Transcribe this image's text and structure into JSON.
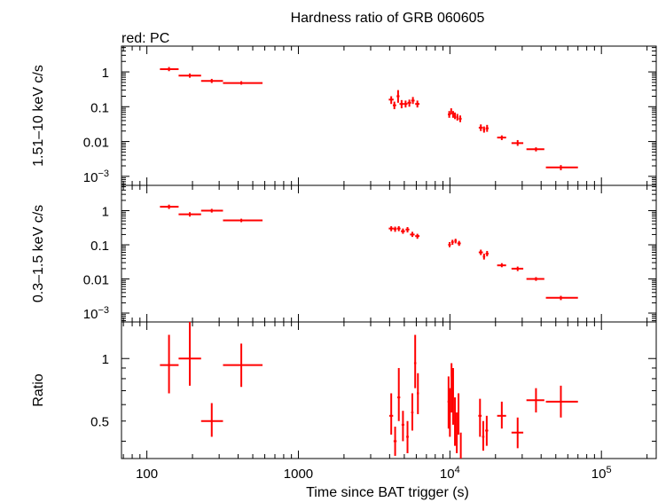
{
  "chart_data": {
    "title": "Hardness ratio of GRB 060605",
    "subtitle": "red: PC",
    "xlabel": "Time since BAT trigger (s)",
    "x_scale": "log",
    "xlim": [
      68,
      230000
    ],
    "x_ticks": [
      {
        "value": 100,
        "label": "100"
      },
      {
        "value": 1000,
        "label": "1000"
      },
      {
        "value": 10000,
        "label": "10",
        "exp": "4"
      },
      {
        "value": 100000,
        "label": "10",
        "exp": "5"
      }
    ],
    "series_color": "#ff0000",
    "panels": [
      {
        "type": "scatter",
        "ylabel": "1.51–10 keV c/s",
        "y_scale": "log",
        "ylim": [
          0.00055,
          5.5
        ],
        "y_ticks": [
          {
            "value": 1,
            "label": "1"
          },
          {
            "value": 0.1,
            "label": "0.1"
          },
          {
            "value": 0.01,
            "label": "0.01"
          },
          {
            "value": 0.001,
            "label": "10",
            "exp": "−3"
          }
        ],
        "points": [
          {
            "x": 140,
            "xlo": 122,
            "xhi": 162,
            "y": 1.2,
            "ylo": 1.05,
            "yhi": 1.38
          },
          {
            "x": 192,
            "xlo": 162,
            "xhi": 228,
            "y": 0.78,
            "ylo": 0.68,
            "yhi": 0.9
          },
          {
            "x": 268,
            "xlo": 228,
            "xhi": 318,
            "y": 0.55,
            "ylo": 0.48,
            "yhi": 0.63
          },
          {
            "x": 420,
            "xlo": 318,
            "xhi": 580,
            "y": 0.48,
            "ylo": 0.43,
            "yhi": 0.54
          },
          {
            "x": 4100,
            "xlo": 3950,
            "xhi": 4250,
            "y": 0.16,
            "ylo": 0.12,
            "yhi": 0.2
          },
          {
            "x": 4300,
            "xlo": 4200,
            "xhi": 4420,
            "y": 0.11,
            "ylo": 0.085,
            "yhi": 0.14
          },
          {
            "x": 4550,
            "xlo": 4450,
            "xhi": 4650,
            "y": 0.2,
            "ylo": 0.13,
            "yhi": 0.3
          },
          {
            "x": 4800,
            "xlo": 4650,
            "xhi": 4950,
            "y": 0.12,
            "ylo": 0.09,
            "yhi": 0.155
          },
          {
            "x": 5100,
            "xlo": 4950,
            "xhi": 5250,
            "y": 0.12,
            "ylo": 0.095,
            "yhi": 0.15
          },
          {
            "x": 5400,
            "xlo": 5250,
            "xhi": 5550,
            "y": 0.13,
            "ylo": 0.1,
            "yhi": 0.16
          },
          {
            "x": 5700,
            "xlo": 5550,
            "xhi": 5850,
            "y": 0.15,
            "ylo": 0.12,
            "yhi": 0.19
          },
          {
            "x": 6100,
            "xlo": 5900,
            "xhi": 6300,
            "y": 0.12,
            "ylo": 0.095,
            "yhi": 0.15
          },
          {
            "x": 9900,
            "xlo": 9700,
            "xhi": 10100,
            "y": 0.06,
            "ylo": 0.048,
            "yhi": 0.075
          },
          {
            "x": 10200,
            "xlo": 10100,
            "xhi": 10300,
            "y": 0.075,
            "ylo": 0.06,
            "yhi": 0.09
          },
          {
            "x": 10500,
            "xlo": 10400,
            "xhi": 10600,
            "y": 0.06,
            "ylo": 0.048,
            "yhi": 0.075
          },
          {
            "x": 10800,
            "xlo": 10700,
            "xhi": 10900,
            "y": 0.055,
            "ylo": 0.044,
            "yhi": 0.068
          },
          {
            "x": 11200,
            "xlo": 11000,
            "xhi": 11400,
            "y": 0.05,
            "ylo": 0.04,
            "yhi": 0.062
          },
          {
            "x": 11700,
            "xlo": 11450,
            "xhi": 11950,
            "y": 0.045,
            "ylo": 0.036,
            "yhi": 0.056
          },
          {
            "x": 16000,
            "xlo": 15500,
            "xhi": 16500,
            "y": 0.025,
            "ylo": 0.02,
            "yhi": 0.031
          },
          {
            "x": 16800,
            "xlo": 16500,
            "xhi": 17100,
            "y": 0.022,
            "ylo": 0.018,
            "yhi": 0.027
          },
          {
            "x": 17600,
            "xlo": 17200,
            "xhi": 18000,
            "y": 0.024,
            "ylo": 0.019,
            "yhi": 0.03
          },
          {
            "x": 22000,
            "xlo": 20500,
            "xhi": 23500,
            "y": 0.013,
            "ylo": 0.011,
            "yhi": 0.015
          },
          {
            "x": 28000,
            "xlo": 25500,
            "xhi": 30500,
            "y": 0.009,
            "ylo": 0.0075,
            "yhi": 0.011
          },
          {
            "x": 37000,
            "xlo": 32000,
            "xhi": 42000,
            "y": 0.006,
            "ylo": 0.0052,
            "yhi": 0.0068
          },
          {
            "x": 54000,
            "xlo": 43000,
            "xhi": 70000,
            "y": 0.0018,
            "ylo": 0.0015,
            "yhi": 0.0021
          }
        ]
      },
      {
        "type": "scatter",
        "ylabel": "0.3–1.5 keV c/s",
        "y_scale": "log",
        "ylim": [
          0.00055,
          5.5
        ],
        "y_ticks": [
          {
            "value": 1,
            "label": "1"
          },
          {
            "value": 0.1,
            "label": "0.1"
          },
          {
            "value": 0.01,
            "label": "0.01"
          },
          {
            "value": 0.001,
            "label": "10",
            "exp": "−3"
          }
        ],
        "points": [
          {
            "x": 140,
            "xlo": 122,
            "xhi": 162,
            "y": 1.3,
            "ylo": 1.12,
            "yhi": 1.5
          },
          {
            "x": 192,
            "xlo": 162,
            "xhi": 228,
            "y": 0.78,
            "ylo": 0.67,
            "yhi": 0.9
          },
          {
            "x": 268,
            "xlo": 228,
            "xhi": 318,
            "y": 1.0,
            "ylo": 0.88,
            "yhi": 1.13
          },
          {
            "x": 420,
            "xlo": 318,
            "xhi": 580,
            "y": 0.52,
            "ylo": 0.46,
            "yhi": 0.58
          },
          {
            "x": 4100,
            "xlo": 3950,
            "xhi": 4250,
            "y": 0.3,
            "ylo": 0.25,
            "yhi": 0.35
          },
          {
            "x": 4350,
            "xlo": 4250,
            "xhi": 4450,
            "y": 0.29,
            "ylo": 0.24,
            "yhi": 0.34
          },
          {
            "x": 4600,
            "xlo": 4480,
            "xhi": 4720,
            "y": 0.3,
            "ylo": 0.25,
            "yhi": 0.35
          },
          {
            "x": 4900,
            "xlo": 4750,
            "xhi": 5050,
            "y": 0.25,
            "ylo": 0.21,
            "yhi": 0.3
          },
          {
            "x": 5250,
            "xlo": 5100,
            "xhi": 5400,
            "y": 0.28,
            "ylo": 0.23,
            "yhi": 0.33
          },
          {
            "x": 5650,
            "xlo": 5450,
            "xhi": 5850,
            "y": 0.2,
            "ylo": 0.17,
            "yhi": 0.24
          },
          {
            "x": 6100,
            "xlo": 5900,
            "xhi": 6300,
            "y": 0.18,
            "ylo": 0.15,
            "yhi": 0.21
          },
          {
            "x": 9950,
            "xlo": 9750,
            "xhi": 10150,
            "y": 0.1,
            "ylo": 0.085,
            "yhi": 0.12
          },
          {
            "x": 10400,
            "xlo": 10200,
            "xhi": 10600,
            "y": 0.12,
            "ylo": 0.1,
            "yhi": 0.14
          },
          {
            "x": 10900,
            "xlo": 10700,
            "xhi": 11100,
            "y": 0.13,
            "ylo": 0.11,
            "yhi": 0.15
          },
          {
            "x": 11500,
            "xlo": 11200,
            "xhi": 11800,
            "y": 0.11,
            "ylo": 0.093,
            "yhi": 0.13
          },
          {
            "x": 16000,
            "xlo": 15500,
            "xhi": 16500,
            "y": 0.06,
            "ylo": 0.05,
            "yhi": 0.072
          },
          {
            "x": 16800,
            "xlo": 16500,
            "xhi": 17100,
            "y": 0.045,
            "ylo": 0.037,
            "yhi": 0.055
          },
          {
            "x": 17600,
            "xlo": 17200,
            "xhi": 18000,
            "y": 0.055,
            "ylo": 0.046,
            "yhi": 0.066
          },
          {
            "x": 22000,
            "xlo": 20500,
            "xhi": 23500,
            "y": 0.025,
            "ylo": 0.022,
            "yhi": 0.029
          },
          {
            "x": 28000,
            "xlo": 25500,
            "xhi": 30500,
            "y": 0.02,
            "ylo": 0.017,
            "yhi": 0.023
          },
          {
            "x": 37000,
            "xlo": 32000,
            "xhi": 42000,
            "y": 0.01,
            "ylo": 0.0088,
            "yhi": 0.0113
          },
          {
            "x": 54000,
            "xlo": 43000,
            "xhi": 70000,
            "y": 0.0028,
            "ylo": 0.0024,
            "yhi": 0.0032
          }
        ]
      },
      {
        "type": "scatter",
        "ylabel": "Ratio",
        "y_scale": "log",
        "ylim": [
          0.33,
          1.5
        ],
        "y_ticks": [
          {
            "value": 1,
            "label": "1"
          },
          {
            "value": 0.5,
            "label": "0.5"
          }
        ],
        "points": [
          {
            "x": 140,
            "xlo": 122,
            "xhi": 162,
            "y": 0.93,
            "ylo": 0.68,
            "yhi": 1.3
          },
          {
            "x": 192,
            "xlo": 162,
            "xhi": 228,
            "y": 1.0,
            "ylo": 0.74,
            "yhi": 1.5
          },
          {
            "x": 268,
            "xlo": 228,
            "xhi": 318,
            "y": 0.5,
            "ylo": 0.42,
            "yhi": 0.61
          },
          {
            "x": 420,
            "xlo": 318,
            "xhi": 580,
            "y": 0.93,
            "ylo": 0.73,
            "yhi": 1.18
          },
          {
            "x": 4100,
            "xlo": 3980,
            "xhi": 4220,
            "y": 0.53,
            "ylo": 0.43,
            "yhi": 0.68
          },
          {
            "x": 4350,
            "xlo": 4250,
            "xhi": 4450,
            "y": 0.4,
            "ylo": 0.34,
            "yhi": 0.47
          },
          {
            "x": 4600,
            "xlo": 4500,
            "xhi": 4700,
            "y": 0.65,
            "ylo": 0.5,
            "yhi": 0.9
          },
          {
            "x": 4900,
            "xlo": 4800,
            "xhi": 5000,
            "y": 0.48,
            "ylo": 0.4,
            "yhi": 0.56
          },
          {
            "x": 5250,
            "xlo": 5150,
            "xhi": 5350,
            "y": 0.42,
            "ylo": 0.35,
            "yhi": 0.5
          },
          {
            "x": 5650,
            "xlo": 5550,
            "xhi": 5750,
            "y": 0.55,
            "ylo": 0.45,
            "yhi": 0.68
          },
          {
            "x": 5900,
            "xlo": 5800,
            "xhi": 6000,
            "y": 0.95,
            "ylo": 0.72,
            "yhi": 1.3
          },
          {
            "x": 6150,
            "xlo": 6050,
            "xhi": 6250,
            "y": 0.68,
            "ylo": 0.54,
            "yhi": 0.85
          },
          {
            "x": 9800,
            "xlo": 9650,
            "xhi": 9950,
            "y": 0.62,
            "ylo": 0.46,
            "yhi": 0.82
          },
          {
            "x": 10000,
            "xlo": 9900,
            "xhi": 10100,
            "y": 0.55,
            "ylo": 0.42,
            "yhi": 0.72
          },
          {
            "x": 10250,
            "xlo": 10150,
            "xhi": 10350,
            "y": 0.75,
            "ylo": 0.55,
            "yhi": 0.95
          },
          {
            "x": 10500,
            "xlo": 10400,
            "xhi": 10600,
            "y": 0.68,
            "ylo": 0.48,
            "yhi": 0.9
          },
          {
            "x": 10800,
            "xlo": 10700,
            "xhi": 10900,
            "y": 0.5,
            "ylo": 0.38,
            "yhi": 0.65
          },
          {
            "x": 11100,
            "xlo": 11000,
            "xhi": 11200,
            "y": 0.45,
            "ylo": 0.35,
            "yhi": 0.55
          },
          {
            "x": 11400,
            "xlo": 11300,
            "xhi": 11500,
            "y": 0.55,
            "ylo": 0.43,
            "yhi": 0.68
          },
          {
            "x": 11800,
            "xlo": 11700,
            "xhi": 11900,
            "y": 0.38,
            "ylo": 0.33,
            "yhi": 0.44
          },
          {
            "x": 15800,
            "xlo": 15400,
            "xhi": 16200,
            "y": 0.53,
            "ylo": 0.42,
            "yhi": 0.64
          },
          {
            "x": 16600,
            "xlo": 16300,
            "xhi": 16900,
            "y": 0.42,
            "ylo": 0.36,
            "yhi": 0.5
          },
          {
            "x": 17500,
            "xlo": 17100,
            "xhi": 17900,
            "y": 0.45,
            "ylo": 0.38,
            "yhi": 0.53
          },
          {
            "x": 22000,
            "xlo": 20500,
            "xhi": 23500,
            "y": 0.53,
            "ylo": 0.46,
            "yhi": 0.62
          },
          {
            "x": 28000,
            "xlo": 25500,
            "xhi": 30500,
            "y": 0.44,
            "ylo": 0.37,
            "yhi": 0.52
          },
          {
            "x": 37000,
            "xlo": 32000,
            "xhi": 42000,
            "y": 0.63,
            "ylo": 0.55,
            "yhi": 0.72
          },
          {
            "x": 54000,
            "xlo": 43000,
            "xhi": 70000,
            "y": 0.62,
            "ylo": 0.52,
            "yhi": 0.74
          }
        ]
      }
    ]
  }
}
